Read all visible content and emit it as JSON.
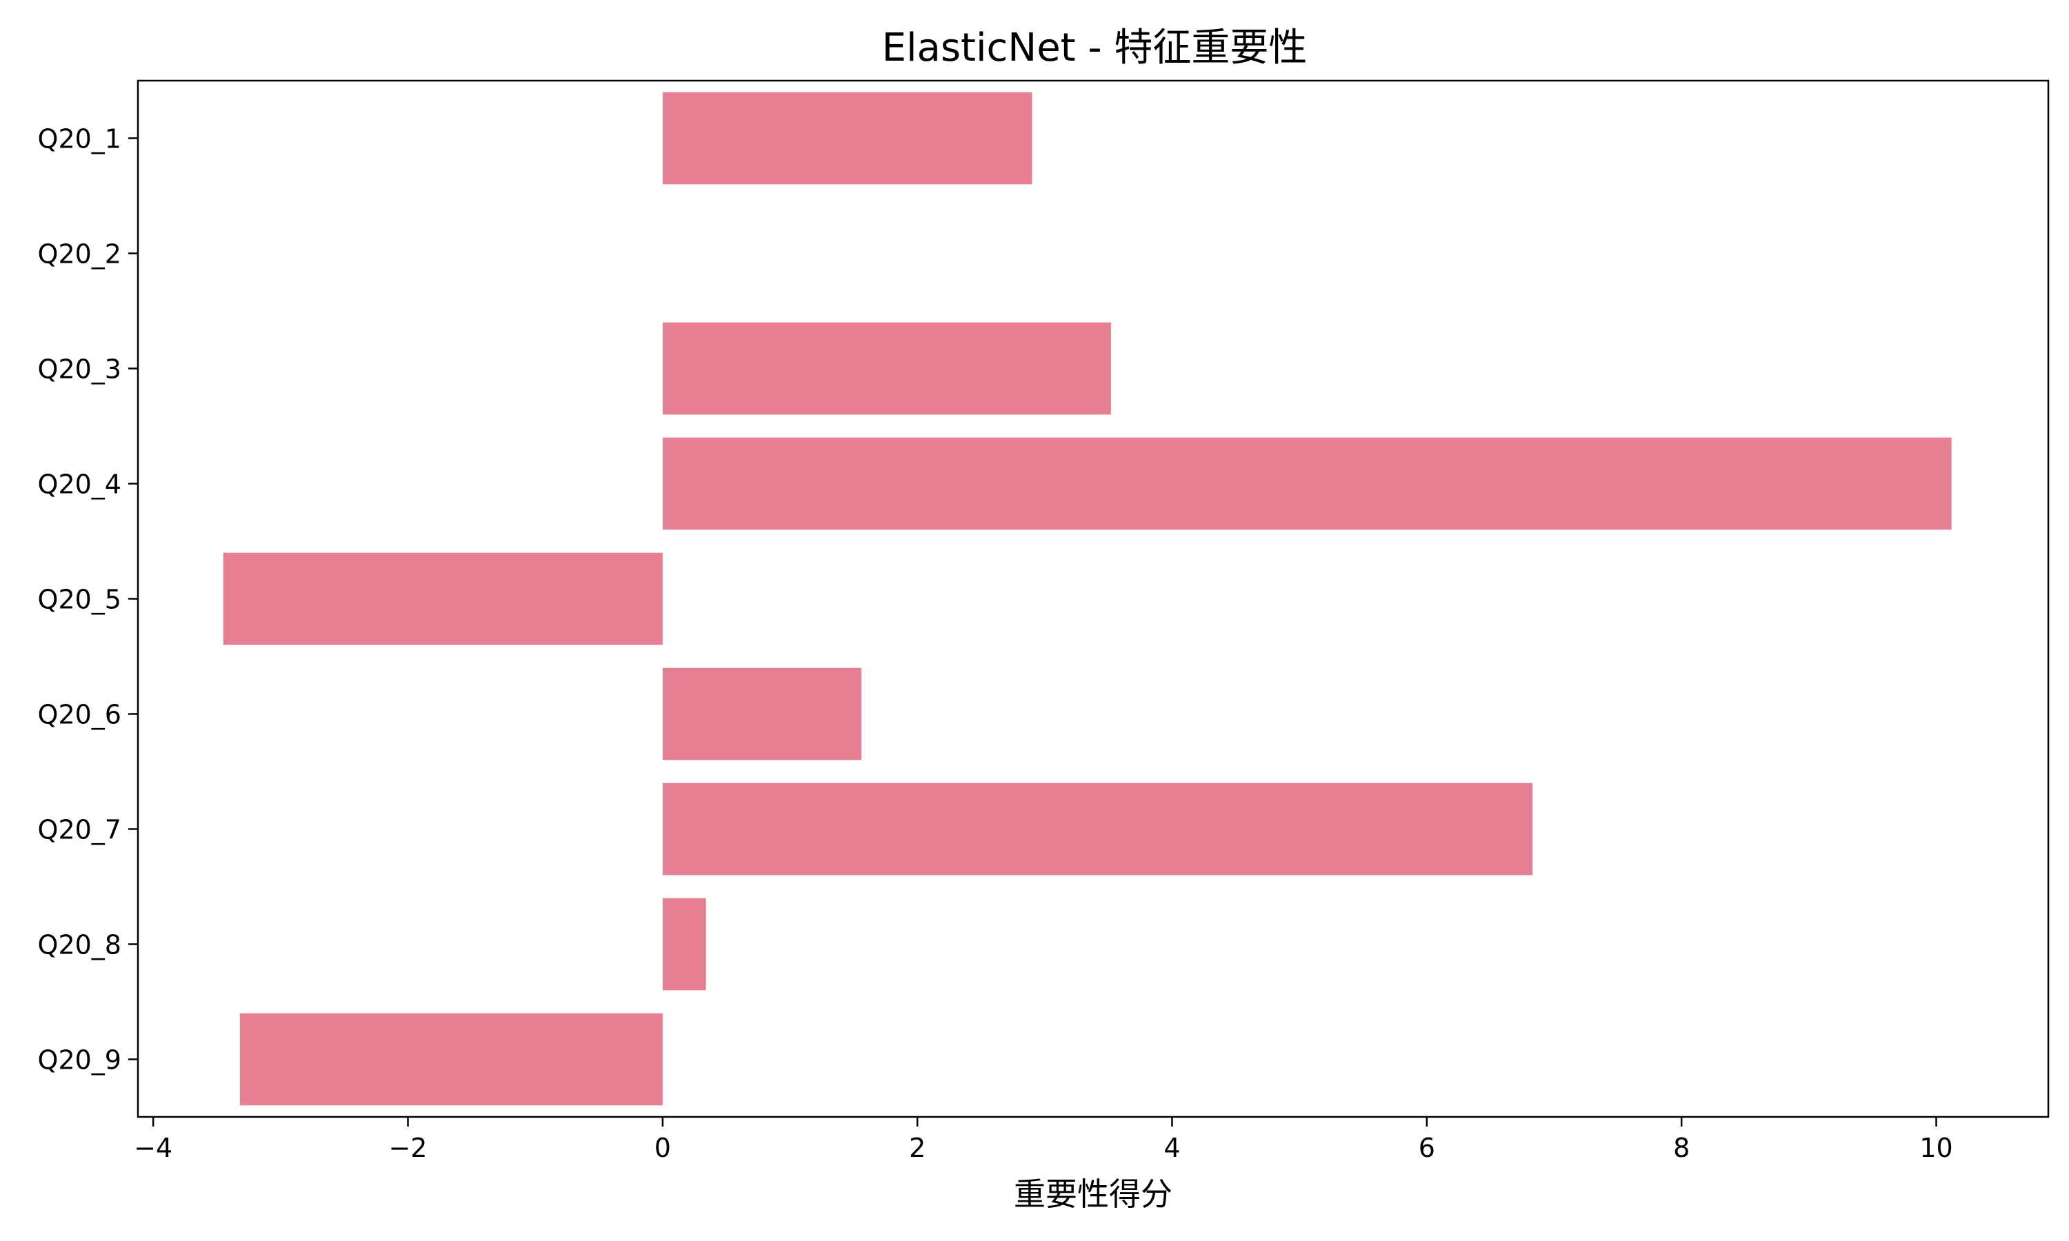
{
  "chart_data": {
    "type": "bar",
    "orientation": "horizontal",
    "title": "ElasticNet - 特征重要性",
    "xlabel": "重要性得分",
    "ylabel": "",
    "categories": [
      "Q20_1",
      "Q20_2",
      "Q20_3",
      "Q20_4",
      "Q20_5",
      "Q20_6",
      "Q20_7",
      "Q20_8",
      "Q20_9"
    ],
    "values": [
      2.9,
      0.0,
      3.52,
      10.12,
      -3.45,
      1.56,
      6.83,
      0.34,
      -3.32
    ],
    "xlim": [
      -4.12,
      10.88
    ],
    "xticks": [
      -4,
      -2,
      0,
      2,
      4,
      6,
      8,
      10
    ],
    "xtick_labels": [
      "−4",
      "−2",
      "0",
      "2",
      "4",
      "6",
      "8",
      "10"
    ],
    "grid": false,
    "colors": {
      "bar": "#e67f91",
      "axes": "#000000",
      "background": "#ffffff"
    }
  }
}
